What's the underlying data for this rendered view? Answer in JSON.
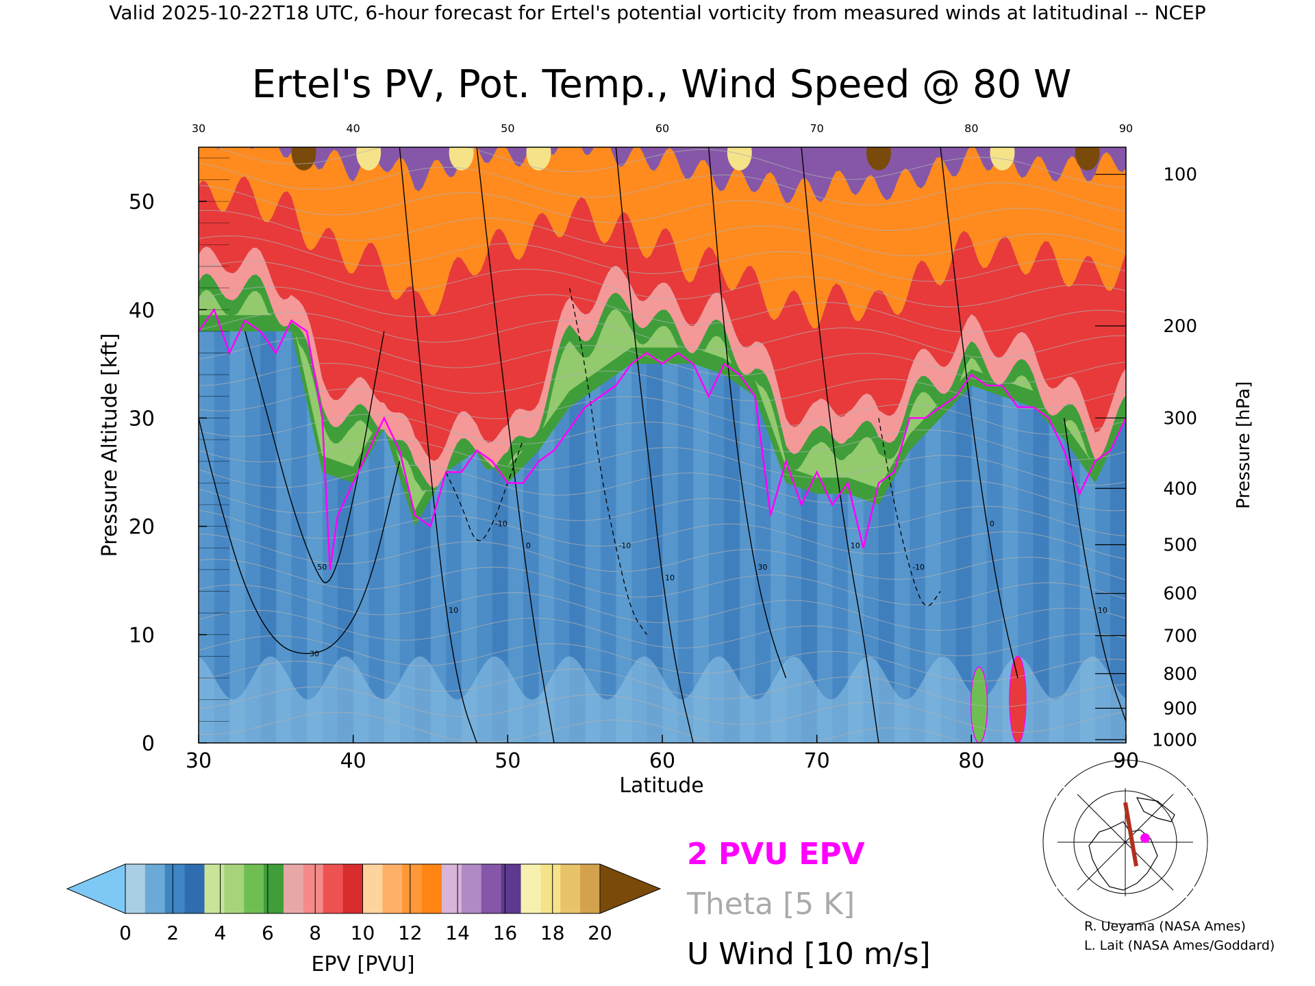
{
  "header": "Valid 2025-10-22T18 UTC, 6-hour forecast for Ertel's potential vorticity from measured winds at latitudinal -- NCEP",
  "chart_data": {
    "type": "heatmap",
    "title": "Ertel's PV, Pot. Temp., Wind Speed @ 80 W",
    "xlabel": "Latitude",
    "ylabel": "Pressure Altitude [kft]",
    "y2label": "Pressure [hPa]",
    "xlim": [
      30,
      90
    ],
    "ylim": [
      0,
      55
    ],
    "x_ticks": [
      "30",
      "40",
      "50",
      "60",
      "70",
      "80",
      "90"
    ],
    "top_ticks": [
      "30",
      "40",
      "50",
      "60",
      "70",
      "80",
      "90"
    ],
    "y_ticks": [
      "0",
      "10",
      "20",
      "30",
      "40",
      "50"
    ],
    "pressure_ticks": [
      {
        "label": "100",
        "kft": 52.5
      },
      {
        "label": "200",
        "kft": 38.5
      },
      {
        "label": "300",
        "kft": 30.0
      },
      {
        "label": "400",
        "kft": 23.5
      },
      {
        "label": "500",
        "kft": 18.3
      },
      {
        "label": "600",
        "kft": 13.8
      },
      {
        "label": "700",
        "kft": 9.9
      },
      {
        "label": "800",
        "kft": 6.4
      },
      {
        "label": "900",
        "kft": 3.2
      },
      {
        "label": "1000",
        "kft": 0.3
      }
    ],
    "tropopause_2pvu": {
      "lat": [
        30,
        31,
        32,
        33,
        34,
        35,
        36,
        37,
        38,
        38.5,
        39,
        40,
        41,
        42,
        43,
        44,
        45,
        46,
        47,
        48,
        49,
        50,
        51,
        52,
        53,
        54,
        55,
        56,
        57,
        58,
        59,
        60,
        61,
        62,
        63,
        64,
        65,
        66,
        67,
        68,
        69,
        70,
        71,
        72,
        73,
        74,
        75,
        76,
        77,
        78,
        79,
        80,
        81,
        82,
        83,
        84,
        85,
        86,
        87,
        88,
        89,
        90
      ],
      "kft": [
        38,
        40,
        36,
        39,
        38,
        36,
        39,
        38,
        30,
        16,
        21,
        24,
        27,
        30,
        27,
        21,
        20,
        25,
        25,
        27,
        26,
        24,
        24,
        26,
        27,
        29,
        31,
        32,
        33,
        35,
        36,
        35,
        36,
        35,
        32,
        35,
        34,
        32,
        21,
        26,
        22,
        25,
        22,
        24,
        18,
        24,
        25,
        30,
        30,
        31,
        32,
        34,
        33,
        33,
        31,
        31,
        30,
        27,
        23,
        26,
        27,
        30
      ]
    },
    "epv_profile": {
      "lat": [
        30,
        32,
        34,
        36,
        38,
        40,
        42,
        44,
        46,
        48,
        50,
        52,
        54,
        56,
        58,
        60,
        62,
        64,
        66,
        68,
        70,
        72,
        74,
        76,
        78,
        80,
        82,
        84,
        86,
        88,
        90
      ],
      "trop": [
        38,
        38,
        38,
        38,
        25,
        24,
        29,
        20,
        25,
        27,
        24,
        27,
        31,
        33,
        35,
        35,
        35,
        34,
        32,
        24,
        23,
        23,
        22,
        27,
        30,
        33,
        32,
        31,
        28,
        24,
        30
      ],
      "green": [
        44,
        45,
        44,
        42,
        34,
        32,
        33,
        27,
        28,
        30,
        28,
        33,
        40,
        42,
        43,
        41,
        40,
        40,
        37,
        31,
        30,
        32,
        30,
        34,
        36,
        38,
        37,
        36,
        33,
        30,
        33
      ],
      "red": [
        50,
        51,
        50,
        49,
        46,
        45,
        44,
        40,
        42,
        45,
        46,
        47,
        49,
        48,
        47,
        46,
        44,
        44,
        42,
        40,
        40,
        41,
        40,
        42,
        44,
        46,
        45,
        45,
        44,
        43,
        44
      ],
      "orange": [
        56,
        56,
        56,
        55,
        54,
        53,
        54,
        52,
        53,
        55,
        54,
        55,
        56,
        55,
        54,
        54,
        53,
        52,
        52,
        51,
        51,
        52,
        51,
        52,
        53,
        54,
        54,
        53,
        53,
        53,
        54
      ]
    },
    "surface_features": [
      {
        "lat": 80.5,
        "kft": 7,
        "note": "green"
      },
      {
        "lat": 83,
        "kft": 8,
        "note": "red"
      }
    ],
    "u_wind_contours": [
      {
        "label": "30",
        "lat": [
          30,
          31,
          33,
          35,
          37,
          39,
          41,
          43
        ],
        "kft": [
          30,
          24,
          14,
          9,
          8,
          9,
          14,
          26
        ]
      },
      {
        "label": "50",
        "lat": [
          33,
          34.5,
          36,
          37.5,
          38.5,
          40,
          42
        ],
        "kft": [
          38,
          30,
          22,
          16,
          14,
          22,
          38
        ]
      },
      {
        "label": "10",
        "lat": [
          43,
          44,
          45,
          46,
          47,
          48
        ],
        "kft": [
          55,
          40,
          25,
          12,
          4,
          0
        ]
      },
      {
        "label": "0",
        "lat": [
          48,
          49,
          50,
          51,
          52,
          53
        ],
        "kft": [
          55,
          42,
          30,
          18,
          8,
          0
        ]
      },
      {
        "label": "10",
        "lat": [
          57,
          58,
          59,
          60,
          61,
          62
        ],
        "kft": [
          55,
          40,
          28,
          15,
          6,
          0
        ]
      },
      {
        "label": "30",
        "lat": [
          63,
          64,
          65,
          66,
          67,
          68
        ],
        "kft": [
          55,
          38,
          25,
          16,
          10,
          6
        ]
      },
      {
        "label": "10",
        "lat": [
          69,
          70,
          71,
          72,
          73,
          74
        ],
        "kft": [
          55,
          40,
          28,
          18,
          10,
          0
        ]
      },
      {
        "label": "0",
        "lat": [
          78,
          79,
          80,
          81,
          82,
          83
        ],
        "kft": [
          55,
          42,
          30,
          20,
          12,
          6
        ]
      },
      {
        "label": "10",
        "lat": [
          86,
          87,
          88,
          89,
          90
        ],
        "kft": [
          30,
          20,
          12,
          6,
          2
        ]
      }
    ],
    "u_wind_dashed": [
      {
        "label": "-10",
        "lat": [
          46,
          47,
          48,
          49,
          50,
          51
        ],
        "kft": [
          25,
          22,
          18,
          20,
          24,
          28
        ]
      },
      {
        "label": "-10",
        "lat": [
          54,
          55,
          56,
          57,
          58,
          59
        ],
        "kft": [
          42,
          35,
          25,
          18,
          12,
          10
        ]
      },
      {
        "label": "-10",
        "lat": [
          74,
          75,
          76,
          77,
          78
        ],
        "kft": [
          30,
          22,
          16,
          12,
          14
        ]
      }
    ],
    "legend_lines": [
      {
        "label": "2 PVU EPV",
        "color": "#ff00ff"
      },
      {
        "label": "Theta [5 K]",
        "color": "#aaaaaa"
      },
      {
        "label": "U Wind [10 m/s]",
        "color": "#000000"
      }
    ],
    "colorbar": {
      "label": "EPV [PVU]",
      "ticks": [
        "0",
        "2",
        "4",
        "6",
        "8",
        "10",
        "12",
        "14",
        "16",
        "18",
        "20"
      ],
      "under_color": "#7ec8f5",
      "over_color": "#7a4a0a",
      "colors": [
        "#a9cfe4",
        "#6ba9d6",
        "#3d86c3",
        "#2f6db0",
        "#c9e39a",
        "#a7d47a",
        "#6fbe54",
        "#3f9e3a",
        "#e8a7a7",
        "#f48a8a",
        "#ee5151",
        "#d92d2d",
        "#fdd39e",
        "#ffb068",
        "#ff9838",
        "#ff8515",
        "#d7b4d8",
        "#b08ac4",
        "#8657a8",
        "#5e3a8f",
        "#f7f0b0",
        "#f5e38a",
        "#e9c36a",
        "#d4a24e"
      ]
    }
  },
  "inset": {
    "credits": [
      "R. Ueyama (NASA Ames)",
      "L. Lait (NASA Ames/Goddard)"
    ]
  }
}
